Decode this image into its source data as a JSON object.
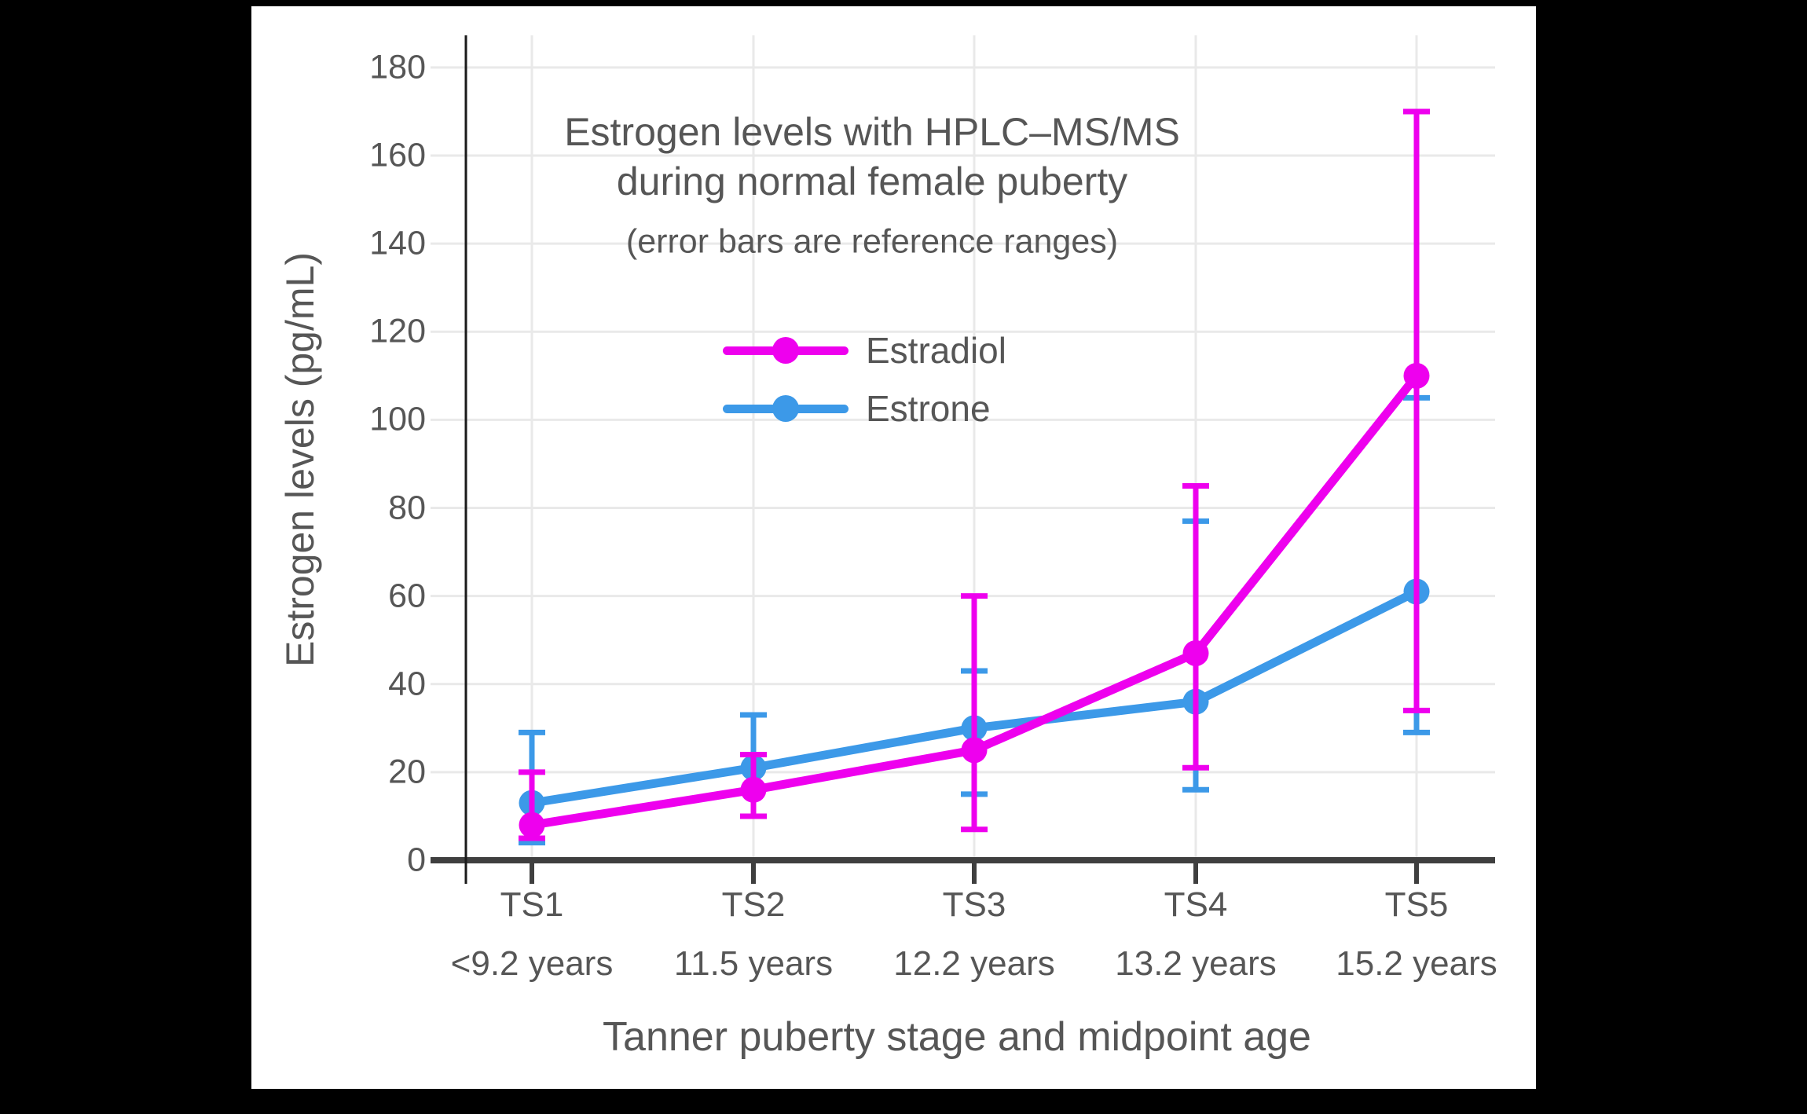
{
  "display": {
    "title_line1": "Estrogen levels with HPLC–MS/MS",
    "title_line2": "during normal female puberty",
    "subtitle": "(error bars are reference ranges)"
  },
  "legend": {
    "items": [
      {
        "label": "Estradiol",
        "color": "#EE00EE"
      },
      {
        "label": "Estrone",
        "color": "#3C99E8"
      }
    ]
  },
  "theme": {
    "background": "#000000",
    "canvas_background": "#ffffff",
    "grid_color": "#e9e9e9",
    "x_axis_color": "#3f3f3f",
    "y_axis_color": "#1a1a1a",
    "text_color": "#565656",
    "estradiol_color": "#EE00EE",
    "estrone_color": "#3C99E8"
  },
  "chart_data": {
    "type": "line",
    "title": "Estrogen levels with HPLC–MS/MS during normal female puberty",
    "subtitle": "(error bars are reference ranges)",
    "xlabel": "Tanner puberty stage and midpoint age",
    "ylabel": "Estrogen levels (pg/mL)",
    "categories": [
      "TS1",
      "TS2",
      "TS3",
      "TS4",
      "TS5"
    ],
    "category_ages": [
      "<9.2 years",
      "11.5 years",
      "12.2 years",
      "13.2 years",
      "15.2 years"
    ],
    "series": [
      {
        "name": "Estradiol",
        "color": "#EE00EE",
        "values": [
          8,
          16,
          25,
          47,
          110
        ],
        "error_low": [
          5,
          10,
          7,
          21,
          34
        ],
        "error_high": [
          20,
          24,
          60,
          85,
          170
        ]
      },
      {
        "name": "Estrone",
        "color": "#3C99E8",
        "values": [
          13,
          21,
          30,
          36,
          61
        ],
        "error_low": [
          4,
          10,
          15,
          16,
          29
        ],
        "error_high": [
          29,
          33,
          43,
          77,
          105
        ]
      }
    ],
    "draw_order": [
      "Estrone",
      "Estradiol"
    ],
    "error_bars": "reference ranges",
    "ylim": [
      0,
      187
    ],
    "yticks": [
      0,
      20,
      40,
      60,
      80,
      100,
      120,
      140,
      160,
      180
    ],
    "grid": true,
    "legend_position": "inside-upper-middle"
  }
}
